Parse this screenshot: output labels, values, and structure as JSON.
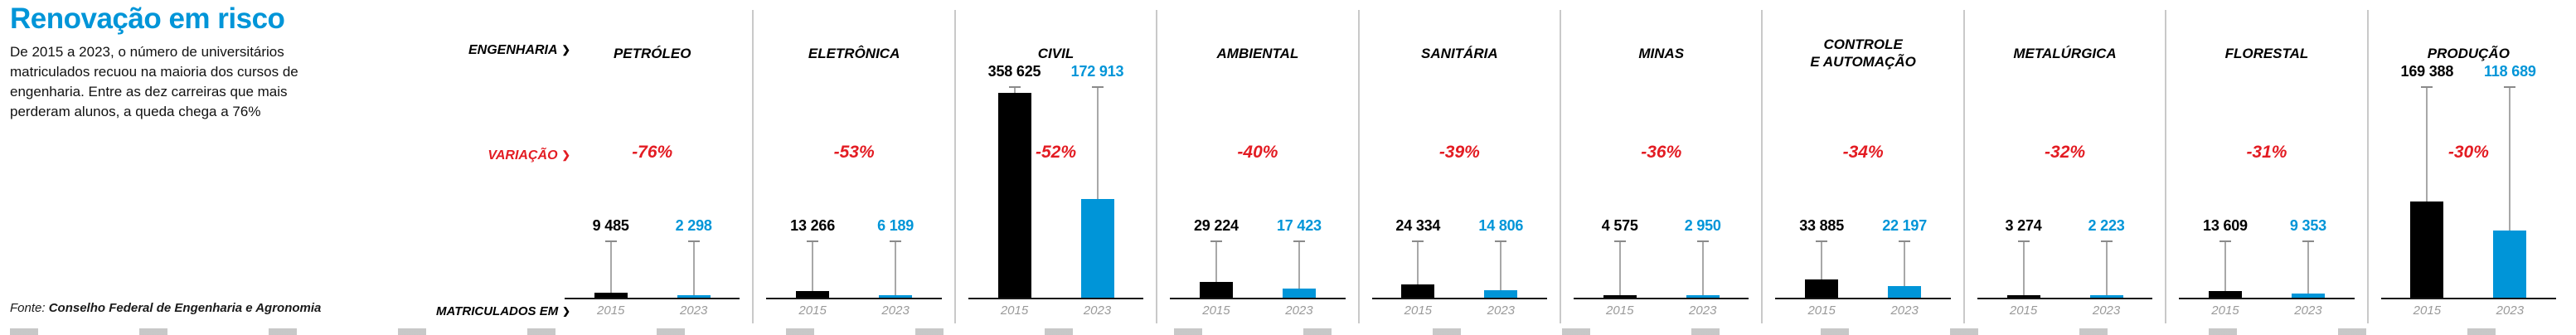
{
  "intro": {
    "title": "Renovação em risco",
    "description": "De 2015 a 2023, o número de universitários matriculados recuou na maioria dos cursos de engenharia. Entre as dez carreiras que mais perderam alunos, a queda chega a 76%",
    "source_label": "Fonte:",
    "source_name": "Conselho Federal de Engenharia e Agronomia"
  },
  "row_labels": {
    "top": "ENGENHARIA",
    "middle": "VARIAÇÃO",
    "bottom": "MATRICULADOS EM",
    "chevron": "❯"
  },
  "colors": {
    "accent_blue": "#0095d8",
    "bar_2015_black": "#000000",
    "bar_2023_blue": "#0095d8",
    "variation_red": "#e31c23",
    "divider_gray": "#c9c9c9",
    "year_gray": "#9a9a9a"
  },
  "chart_data": {
    "type": "bar",
    "title": "Renovação em risco",
    "subtitle": "De 2015 a 2023, o número de universitários matriculados recuou na maioria dos cursos de engenharia. Entre as dez carreiras que mais perderam alunos, a queda chega a 76%",
    "unit": "matriculados",
    "ylim": [
      0,
      358625
    ],
    "grid": false,
    "legend_position": "none",
    "categories": [
      "PETRÓLEO",
      "ELETRÔNICA",
      "CIVIL",
      "AMBIENTAL",
      "SANITÁRIA",
      "MINAS",
      "CONTROLE\nE AUTOMAÇÃO",
      "METALÚRGICA",
      "FLORESTAL",
      "PRODUÇÃO"
    ],
    "variations": [
      "-76%",
      "-53%",
      "-52%",
      "-40%",
      "-39%",
      "-36%",
      "-34%",
      "-32%",
      "-31%",
      "-30%"
    ],
    "series": [
      {
        "name": "2015",
        "color": "#000000",
        "values": [
          9485,
          13266,
          358625,
          29224,
          24334,
          4575,
          33885,
          3274,
          13609,
          169388
        ],
        "labels": [
          "9 485",
          "13 266",
          "358 625",
          "29 224",
          "24 334",
          "4 575",
          "33 885",
          "3 274",
          "13 609",
          "169 388"
        ]
      },
      {
        "name": "2023",
        "color": "#0095d8",
        "values": [
          2298,
          6189,
          172913,
          17423,
          14806,
          2950,
          22197,
          2223,
          9353,
          118689
        ],
        "labels": [
          "2 298",
          "6 189",
          "172 913",
          "17 423",
          "14 806",
          "2 950",
          "22 197",
          "2 223",
          "9 353",
          "118 689"
        ]
      }
    ]
  }
}
